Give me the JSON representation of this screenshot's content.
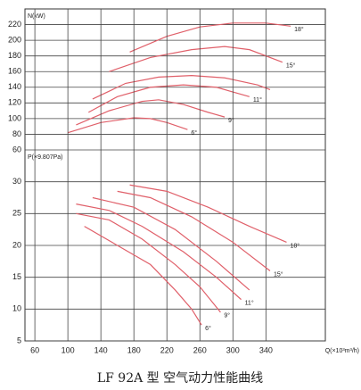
{
  "caption": "LF 92A 型   空气动力性能曲线",
  "chart_data": [
    {
      "type": "line",
      "y_label": "N(kW)",
      "xlim": [
        48,
        412
      ],
      "ylim": [
        60,
        240
      ],
      "yticks": [
        60,
        80,
        100,
        120,
        140,
        160,
        180,
        200,
        220
      ],
      "color": "#e0606a",
      "grid": true,
      "series": [
        {
          "name": "6°",
          "x": [
            100,
            140,
            180,
            200,
            220,
            245
          ],
          "values": [
            82,
            95,
            101,
            100,
            95,
            86
          ]
        },
        {
          "name": "9°",
          "x": [
            110,
            150,
            190,
            210,
            240,
            270,
            290
          ],
          "values": [
            92,
            110,
            122,
            124,
            118,
            108,
            102
          ]
        },
        {
          "name": "11°",
          "x": [
            125,
            160,
            200,
            240,
            280,
            320
          ],
          "values": [
            108,
            128,
            140,
            143,
            140,
            128
          ]
        },
        {
          "name": null,
          "x": [
            130,
            170,
            210,
            250,
            290,
            330,
            345
          ],
          "values": [
            125,
            145,
            153,
            155,
            152,
            143,
            137
          ]
        },
        {
          "name": "15°",
          "x": [
            150,
            200,
            250,
            290,
            320,
            360
          ],
          "values": [
            160,
            178,
            188,
            192,
            188,
            172
          ]
        },
        {
          "name": "18°",
          "x": [
            175,
            220,
            260,
            300,
            340,
            370
          ],
          "values": [
            185,
            205,
            217,
            222,
            222,
            218
          ]
        }
      ]
    },
    {
      "type": "line",
      "y_label": "P(×9.807Pa)",
      "x_label": "Q(×10³m³/h)",
      "xlim": [
        48,
        412
      ],
      "ylim": [
        5,
        35
      ],
      "xticks": [
        60,
        100,
        140,
        180,
        220,
        260,
        300,
        340
      ],
      "yticks": [
        5,
        10,
        15,
        20,
        25,
        30
      ],
      "color": "#e0606a",
      "grid": true,
      "series": [
        {
          "name": "6°",
          "x": [
            120,
            160,
            200,
            230,
            250,
            262
          ],
          "values": [
            23,
            20,
            17,
            13,
            10,
            7.5
          ]
        },
        {
          "name": "9°",
          "x": [
            110,
            150,
            190,
            230,
            260,
            285
          ],
          "values": [
            25,
            24,
            21,
            17,
            13.5,
            9.5
          ]
        },
        {
          "name": "11°",
          "x": [
            110,
            150,
            190,
            240,
            280,
            310
          ],
          "values": [
            26.5,
            25.5,
            23,
            19,
            15,
            11.5
          ]
        },
        {
          "name": null,
          "x": [
            130,
            180,
            230,
            280,
            320
          ],
          "values": [
            27.5,
            26,
            22.5,
            17.5,
            13
          ]
        },
        {
          "name": "15°",
          "x": [
            160,
            200,
            250,
            300,
            345
          ],
          "values": [
            28.5,
            27.5,
            24.5,
            20.5,
            16
          ]
        },
        {
          "name": "18°",
          "x": [
            175,
            220,
            270,
            320,
            365
          ],
          "values": [
            29.5,
            28.5,
            26,
            23,
            20.5
          ]
        }
      ]
    }
  ]
}
